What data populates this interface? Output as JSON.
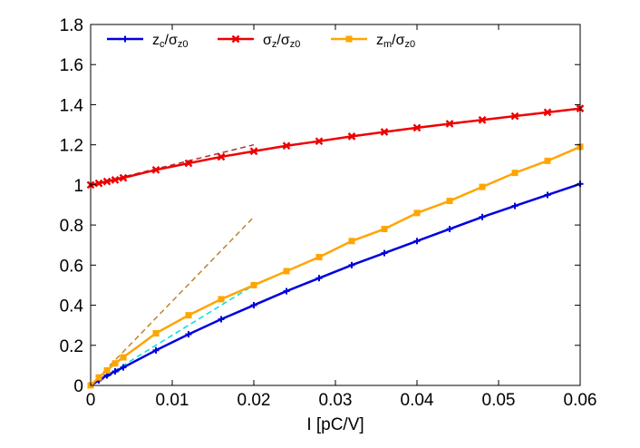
{
  "chart_data": {
    "type": "line",
    "xlabel": "I [pC/V]",
    "ylabel": "",
    "xlim": [
      0,
      0.06
    ],
    "ylim": [
      0,
      1.8
    ],
    "x_ticks": [
      0,
      0.01,
      0.02,
      0.03,
      0.04,
      0.05,
      0.06
    ],
    "x_tick_labels": [
      "0",
      "0.01",
      "0.02",
      "0.03",
      "0.04",
      "0.05",
      "0.06"
    ],
    "y_ticks": [
      0,
      0.2,
      0.4,
      0.6,
      0.8,
      1.0,
      1.2,
      1.4,
      1.6,
      1.8
    ],
    "y_tick_labels": [
      "0",
      "0.2",
      "0.4",
      "0.6",
      "0.8",
      "1",
      "1.2",
      "1.4",
      "1.6",
      "1.8"
    ],
    "grid": false,
    "legend_placement": "top-left",
    "series": [
      {
        "name": "zc/σz0",
        "legend": {
          "main": "z",
          "sub1": "c",
          "mid": "/σ",
          "sub2": "z0"
        },
        "color": "#0000dd",
        "marker": "plus",
        "x": [
          0,
          0.001,
          0.002,
          0.003,
          0.004,
          0.008,
          0.012,
          0.016,
          0.02,
          0.024,
          0.028,
          0.032,
          0.036,
          0.04,
          0.044,
          0.048,
          0.052,
          0.056,
          0.06
        ],
        "y": [
          0,
          0.025,
          0.05,
          0.07,
          0.09,
          0.175,
          0.255,
          0.33,
          0.4,
          0.47,
          0.535,
          0.6,
          0.66,
          0.72,
          0.78,
          0.84,
          0.895,
          0.95,
          1.005
        ]
      },
      {
        "name": "σz/σz0",
        "legend": {
          "main": "σ",
          "sub1": "z",
          "mid": "/σ",
          "sub2": "z0"
        },
        "color": "#ee0000",
        "marker": "cross",
        "x": [
          0,
          0.001,
          0.002,
          0.003,
          0.004,
          0.008,
          0.012,
          0.016,
          0.02,
          0.024,
          0.028,
          0.032,
          0.036,
          0.04,
          0.044,
          0.048,
          0.052,
          0.056,
          0.06
        ],
        "y": [
          1.0,
          1.008,
          1.017,
          1.025,
          1.035,
          1.075,
          1.108,
          1.14,
          1.168,
          1.195,
          1.218,
          1.242,
          1.264,
          1.285,
          1.305,
          1.324,
          1.343,
          1.362,
          1.381
        ]
      },
      {
        "name": "zm/σz0",
        "legend": {
          "main": "z",
          "sub1": "m",
          "mid": "/σ",
          "sub2": "z0"
        },
        "color": "#ffa500",
        "marker": "square",
        "x": [
          0,
          0.001,
          0.002,
          0.003,
          0.004,
          0.008,
          0.012,
          0.016,
          0.02,
          0.024,
          0.028,
          0.032,
          0.036,
          0.04,
          0.044,
          0.048,
          0.052,
          0.056,
          0.06
        ],
        "y": [
          0,
          0.04,
          0.075,
          0.11,
          0.14,
          0.26,
          0.35,
          0.43,
          0.5,
          0.57,
          0.64,
          0.72,
          0.78,
          0.86,
          0.92,
          0.99,
          1.06,
          1.12,
          1.19
        ]
      }
    ],
    "reference_lines": [
      {
        "color": "#b03030",
        "style": "dashed",
        "x": [
          0.0,
          0.02
        ],
        "y": [
          1.0,
          1.2
        ]
      },
      {
        "color": "#b8862b",
        "style": "dashed",
        "x": [
          0.0,
          0.02
        ],
        "y": [
          0.0,
          0.84
        ]
      },
      {
        "color": "#00dddd",
        "style": "dashed",
        "x": [
          0.0,
          0.02
        ],
        "y": [
          0.0,
          0.5
        ]
      },
      {
        "color": "#0000dd",
        "style": "dashed",
        "x": [
          0.0,
          0.004
        ],
        "y": [
          0.0,
          0.085
        ]
      }
    ]
  }
}
